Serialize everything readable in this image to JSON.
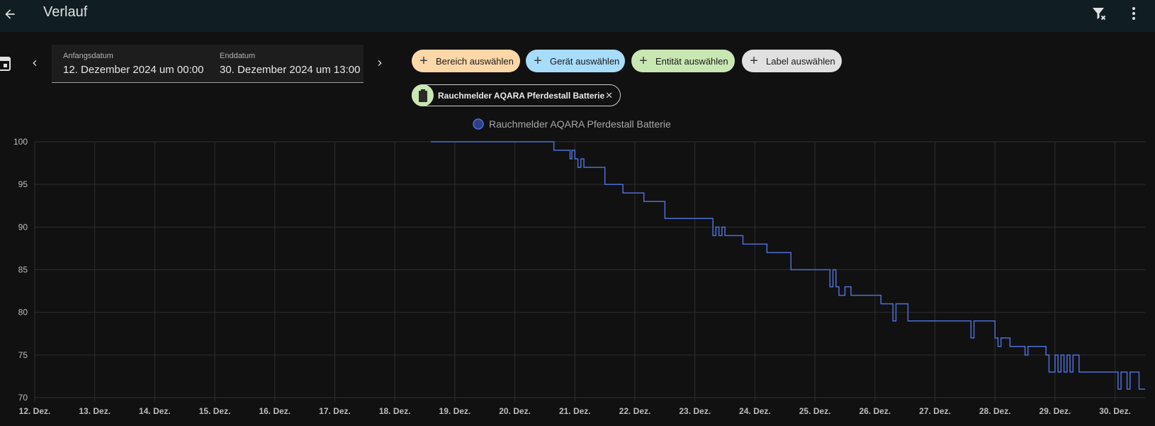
{
  "header": {
    "title": "Verlauf",
    "back_icon": "arrow-left-icon",
    "filter_clear_icon": "filter-remove-icon",
    "menu_icon": "dots-vertical-icon"
  },
  "date_range": {
    "start_label": "Anfangsdatum",
    "start_value": "12. Dezember 2024 um 00:00",
    "end_label": "Enddatum",
    "end_value": "30. Dezember 2024 um 13:00"
  },
  "target_pickers": {
    "area": "Bereich auswählen",
    "device": "Gerät auswählen",
    "entity": "Entität auswählen",
    "label": "Label auswählen",
    "colors": {
      "area": "#fdd7a8",
      "device": "#a8dcfb",
      "entity": "#c9e7b2",
      "label": "#e0e0e0"
    }
  },
  "selected": {
    "entity_name": "Rauchmelder AQARA Pferdestall Batterie",
    "icon": "battery-icon"
  },
  "chart_data": {
    "type": "line",
    "title": "",
    "legend": [
      "Rauchmelder AQARA Pferdestall Batterie"
    ],
    "legend_position": "top-center",
    "grid": true,
    "line_color": "#4e6fd6",
    "ylim": [
      70,
      100
    ],
    "y_ticks": [
      100,
      95,
      90,
      85,
      80,
      75,
      70
    ],
    "x_ticks": [
      "12. Dez.",
      "13. Dez.",
      "14. Dez.",
      "15. Dez.",
      "16. Dez.",
      "17. Dez.",
      "18. Dez.",
      "19. Dez.",
      "20. Dez.",
      "21. Dez.",
      "22. Dez.",
      "23. Dez.",
      "24. Dez.",
      "25. Dez.",
      "26. Dez.",
      "27. Dez.",
      "28. Dez.",
      "29. Dez.",
      "30. Dez."
    ],
    "series": [
      {
        "name": "Rauchmelder AQARA Pferdestall Batterie",
        "step": true,
        "x_unit": "Dezember 2024 (Tag, Dezimal)",
        "x": [
          18.6,
          20.65,
          20.72,
          20.92,
          20.95,
          21.0,
          21.05,
          21.1,
          21.15,
          21.25,
          21.3,
          21.5,
          21.55,
          21.8,
          21.95,
          22.15,
          22.5,
          22.5,
          23.3,
          23.35,
          23.4,
          23.45,
          23.5,
          23.55,
          23.8,
          24.2,
          24.6,
          24.65,
          25.25,
          25.3,
          25.35,
          25.4,
          25.5,
          25.6,
          26.1,
          26.3,
          26.35,
          26.55,
          27.6,
          27.65,
          28.0,
          28.05,
          28.1,
          28.25,
          28.5,
          28.55,
          28.75,
          28.85,
          28.9,
          29.0,
          29.05,
          29.1,
          29.15,
          29.2,
          29.25,
          29.3,
          29.4,
          30.05,
          30.1,
          30.2,
          30.25,
          30.4,
          30.5
        ],
        "values": [
          100,
          99,
          99,
          98,
          99,
          98,
          97,
          98,
          97,
          97,
          97,
          95,
          95,
          94,
          94,
          93,
          91,
          91,
          89,
          90,
          89,
          90,
          89,
          89,
          88,
          87,
          85,
          85,
          83,
          85,
          83,
          82,
          83,
          82,
          81,
          79,
          81,
          79,
          77,
          79,
          77,
          76,
          77,
          76,
          75,
          76,
          76,
          75,
          73,
          75,
          73,
          75,
          73,
          75,
          73,
          75,
          73,
          71,
          73,
          71,
          73,
          71,
          71
        ]
      }
    ]
  }
}
